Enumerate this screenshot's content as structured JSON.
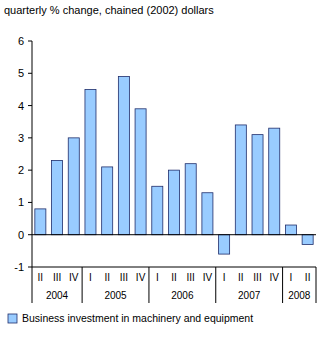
{
  "chart_data": {
    "type": "bar",
    "y_label": "quarterly % change, chained (2002) dollars",
    "categories": [
      "II",
      "III",
      "IV",
      "I",
      "II",
      "III",
      "IV",
      "I",
      "II",
      "III",
      "IV",
      "I",
      "II",
      "III",
      "IV",
      "I",
      "II"
    ],
    "category_groups": [
      {
        "label": "2004",
        "count": 3
      },
      {
        "label": "2005",
        "count": 4
      },
      {
        "label": "2006",
        "count": 4
      },
      {
        "label": "2007",
        "count": 4
      },
      {
        "label": "2008",
        "count": 2
      }
    ],
    "series": [
      {
        "name": "Business investment in machinery and equipment",
        "color": "#99ccff",
        "values": [
          0.8,
          2.3,
          3.0,
          4.5,
          2.1,
          4.9,
          3.9,
          1.5,
          2.0,
          2.2,
          1.3,
          -0.6,
          3.4,
          3.1,
          3.3,
          0.3,
          -0.3
        ]
      }
    ],
    "ylim": [
      -1,
      6
    ],
    "yticks": [
      -1,
      0,
      1,
      2,
      3,
      4,
      5,
      6
    ],
    "grid": false,
    "legend": "bottom"
  }
}
